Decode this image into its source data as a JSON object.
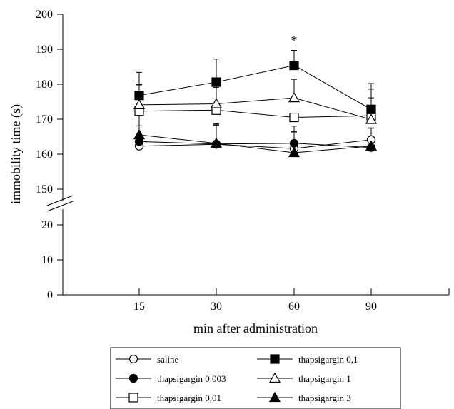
{
  "chart_data": {
    "type": "line",
    "title": "",
    "xlabel": "min after administration",
    "ylabel": "immobility time (s)",
    "categories": [
      "15",
      "30",
      "60",
      "90"
    ],
    "y_ticks": [
      "0",
      "10",
      "20",
      "150",
      "160",
      "170",
      "180",
      "190",
      "200"
    ],
    "y_axis_break": "between 20 and 150",
    "significance": [
      {
        "category": "60",
        "series": "thapsigargin 0,1",
        "label": "*"
      }
    ],
    "legend_position": "bottom",
    "series": [
      {
        "name": "saline",
        "marker": "circle",
        "fill": "#ffffff",
        "values": [
          162.3,
          162.8,
          161.6,
          164.1
        ],
        "errors": [
          0,
          5.5,
          4.5,
          3.4
        ]
      },
      {
        "name": "thapsigargin 0.003",
        "marker": "circle",
        "fill": "#000000",
        "values": [
          163.6,
          162.9,
          163.1,
          161.9
        ],
        "errors": [
          4.5,
          5.5,
          4.9,
          0
        ]
      },
      {
        "name": "thapsigargin 0,01",
        "marker": "square",
        "fill": "#ffffff",
        "values": [
          172.3,
          172.6,
          170.5,
          171.0
        ],
        "errors": [
          7.5,
          6.5,
          0,
          7.6
        ]
      },
      {
        "name": "thapsigargin 0,1",
        "marker": "square",
        "fill": "#000000",
        "values": [
          176.8,
          180.6,
          185.4,
          172.8
        ],
        "errors": [
          6.6,
          6.6,
          4.3,
          7.4
        ]
      },
      {
        "name": "thapsigargin 1",
        "marker": "triangle",
        "fill": "#ffffff",
        "values": [
          174.1,
          174.4,
          176.1,
          169.9
        ],
        "errors": [
          5.8,
          6.2,
          5.3,
          6.2
        ]
      },
      {
        "name": "thapsigargin 3",
        "marker": "triangle",
        "fill": "#000000",
        "values": [
          165.5,
          163.1,
          160.4,
          162.3
        ],
        "errors": [
          5.6,
          5.6,
          6.0,
          5.1
        ]
      }
    ]
  }
}
